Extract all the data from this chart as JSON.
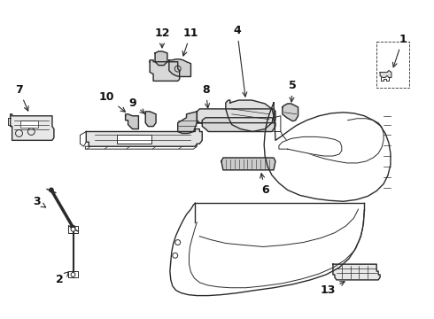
{
  "bg_color": "#ffffff",
  "line_color": "#2a2a2a",
  "label_color": "#111111",
  "figsize": [
    4.9,
    3.6
  ],
  "dpi": 100,
  "parts_labels": {
    "1": [
      458,
      42,
      435,
      95
    ],
    "2": [
      65,
      318,
      75,
      278
    ],
    "3": [
      38,
      228,
      62,
      248
    ],
    "4": [
      268,
      32,
      278,
      115
    ],
    "5": [
      332,
      95,
      330,
      130
    ],
    "6": [
      300,
      215,
      295,
      195
    ],
    "7": [
      18,
      100,
      38,
      135
    ],
    "8": [
      232,
      100,
      232,
      130
    ],
    "9": [
      148,
      115,
      165,
      132
    ],
    "10": [
      118,
      108,
      140,
      128
    ],
    "11": [
      215,
      35,
      210,
      58
    ],
    "12": [
      182,
      35,
      185,
      58
    ],
    "13": [
      372,
      330,
      388,
      312
    ]
  }
}
